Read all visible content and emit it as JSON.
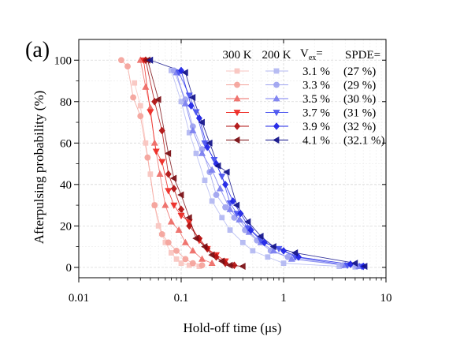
{
  "chart_data": {
    "type": "scatter",
    "panel_label": "(a)",
    "xlabel": "Hold-off time (μs)",
    "ylabel": "Afterpulsing probability (%)",
    "xscale": "log",
    "xlim": [
      0.01,
      10
    ],
    "ylim": [
      -5,
      110
    ],
    "x_ticks": [
      0.01,
      0.1,
      1,
      10
    ],
    "x_tick_labels": [
      "0.01",
      "0.1",
      "1",
      "10"
    ],
    "y_ticks": [
      0,
      20,
      40,
      60,
      80,
      100
    ],
    "y_tick_labels": [
      "0",
      "20",
      "40",
      "60",
      "80",
      "100"
    ],
    "grid": true,
    "legend": {
      "placement": "top-right",
      "header_300": "300 K",
      "header_200": "200 K",
      "header_vex": "V",
      "header_vex_sub": "ex",
      "header_vex_suffix": "=",
      "header_spde": "SPDE=",
      "rows": [
        {
          "vex": "3.1 %",
          "spde": "(27 %)",
          "marker": "square",
          "color300": "#f9c5c0",
          "color200": "#b3b8f2"
        },
        {
          "vex": "3.3 %",
          "spde": "(29 %)",
          "marker": "circle",
          "color300": "#f4a39b",
          "color200": "#9ea3f0"
        },
        {
          "vex": "3.5 %",
          "spde": "(30 %)",
          "marker": "triangle-up",
          "color300": "#ee6b66",
          "color200": "#7b7ff0"
        },
        {
          "vex": "3.7 %",
          "spde": "(31 %)",
          "marker": "triangle-down",
          "color300": "#ee2a24",
          "color200": "#4b55ef"
        },
        {
          "vex": "3.9 %",
          "spde": "(32 %)",
          "marker": "diamond",
          "color300": "#b11010",
          "color200": "#1f24e6"
        },
        {
          "vex": "4.1 %",
          "spde": "(32.1 %)",
          "marker": "triangle-left",
          "color300": "#7a0d12",
          "color200": "#12128a"
        }
      ]
    },
    "series": [
      {
        "name": "300 K",
        "label": "3.1 %",
        "marker": "square",
        "color": "#f9c5c0",
        "x": [
          0.035,
          0.04,
          0.045,
          0.05,
          0.055,
          0.06,
          0.07,
          0.08,
          0.09,
          0.1,
          0.12,
          0.15
        ],
        "y": [
          89,
          78,
          60,
          45,
          30,
          20,
          12,
          7,
          4,
          2,
          1,
          0.5
        ]
      },
      {
        "name": "300 K",
        "label": "3.3 %",
        "marker": "circle",
        "color": "#f4a39b",
        "x": [
          0.026,
          0.03,
          0.034,
          0.04,
          0.047,
          0.055,
          0.065,
          0.075,
          0.09,
          0.11,
          0.13,
          0.16
        ],
        "y": [
          100,
          97,
          82,
          73,
          53,
          30,
          16,
          12,
          8,
          4,
          2,
          1
        ]
      },
      {
        "name": "300 K",
        "label": "3.5 %",
        "marker": "triangle-up",
        "color": "#ee6b66",
        "x": [
          0.04,
          0.045,
          0.05,
          0.055,
          0.062,
          0.07,
          0.08,
          0.095,
          0.11,
          0.13,
          0.16,
          0.2
        ],
        "y": [
          100,
          87,
          77,
          60,
          45,
          30,
          22,
          18,
          12,
          8,
          4,
          2
        ]
      },
      {
        "name": "300 K",
        "label": "3.7 %",
        "marker": "triangle-down",
        "color": "#ee2a24",
        "x": [
          0.043,
          0.05,
          0.057,
          0.065,
          0.075,
          0.085,
          0.1,
          0.12,
          0.15,
          0.18,
          0.22,
          0.27
        ],
        "y": [
          100,
          75,
          56,
          51,
          37,
          30,
          25,
          22,
          13,
          9,
          6,
          3
        ]
      },
      {
        "name": "300 K",
        "label": "3.9 %",
        "marker": "diamond",
        "color": "#b11010",
        "x": [
          0.045,
          0.055,
          0.065,
          0.075,
          0.085,
          0.1,
          0.12,
          0.15,
          0.18,
          0.22,
          0.27,
          0.33
        ],
        "y": [
          100,
          80,
          66,
          45,
          38,
          28,
          20,
          14,
          9,
          5,
          2,
          1
        ]
      },
      {
        "name": "300 K",
        "label": "4.1 %",
        "marker": "triangle-left",
        "color": "#7a0d12",
        "x": [
          0.047,
          0.06,
          0.075,
          0.085,
          0.1,
          0.12,
          0.14,
          0.17,
          0.2,
          0.25,
          0.3,
          0.4
        ],
        "y": [
          100,
          81,
          55,
          43,
          35,
          24,
          14,
          10,
          6,
          3,
          1,
          0.5
        ]
      },
      {
        "name": "200 K",
        "label": "3.1 %",
        "marker": "square",
        "color": "#b3b8f2",
        "x": [
          0.08,
          0.1,
          0.12,
          0.14,
          0.17,
          0.2,
          0.25,
          0.3,
          0.4,
          0.5,
          0.7,
          1,
          3.5,
          5
        ],
        "y": [
          95,
          80,
          65,
          55,
          42,
          32,
          24,
          18,
          12,
          8,
          5,
          2,
          0.5,
          0.2
        ]
      },
      {
        "name": "200 K",
        "label": "3.3 %",
        "marker": "circle",
        "color": "#9ea3f0",
        "x": [
          0.085,
          0.11,
          0.13,
          0.16,
          0.19,
          0.22,
          0.27,
          0.33,
          0.42,
          0.55,
          0.75,
          1.1,
          3.8,
          5.2
        ],
        "y": [
          95,
          81,
          68,
          57,
          46,
          35,
          29,
          24,
          18,
          13,
          8,
          5,
          1,
          0.5
        ]
      },
      {
        "name": "200 K",
        "label": "3.5 %",
        "marker": "triangle-up",
        "color": "#7b7ff0",
        "x": [
          0.09,
          0.11,
          0.13,
          0.16,
          0.2,
          0.24,
          0.3,
          0.37,
          0.46,
          0.6,
          0.8,
          1.2,
          4,
          5.5
        ],
        "y": [
          94,
          79,
          66,
          55,
          47,
          38,
          28,
          23,
          17,
          12,
          8,
          4,
          1,
          0.5
        ]
      },
      {
        "name": "200 K",
        "label": "3.7 %",
        "marker": "triangle-down",
        "color": "#4b55ef",
        "x": [
          0.095,
          0.12,
          0.14,
          0.17,
          0.21,
          0.25,
          0.3,
          0.35,
          0.45,
          0.6,
          0.9,
          1.3,
          4.2,
          5.8
        ],
        "y": [
          94,
          83,
          75,
          60,
          52,
          44,
          31,
          26,
          19,
          13,
          9,
          5,
          1,
          0.5
        ]
      },
      {
        "name": "200 K",
        "label": "3.9 %",
        "marker": "diamond",
        "color": "#1f24e6",
        "x": [
          0.1,
          0.125,
          0.15,
          0.18,
          0.22,
          0.27,
          0.32,
          0.38,
          0.48,
          0.65,
          1,
          1.4,
          4.5,
          6
        ],
        "y": [
          95,
          78,
          72,
          58,
          50,
          40,
          32,
          26,
          18,
          12,
          8,
          5,
          1.5,
          0.5
        ]
      },
      {
        "name": "200 K",
        "label": "4.1 %",
        "marker": "triangle-left",
        "color": "#12128a",
        "x": [
          0.05,
          0.11,
          0.13,
          0.16,
          0.19,
          0.23,
          0.28,
          0.35,
          0.45,
          0.6,
          0.8,
          1.3,
          5,
          6.2
        ],
        "y": [
          100,
          94,
          82,
          70,
          60,
          49,
          46,
          30,
          22,
          15,
          10,
          7,
          2,
          0.5
        ]
      }
    ]
  }
}
